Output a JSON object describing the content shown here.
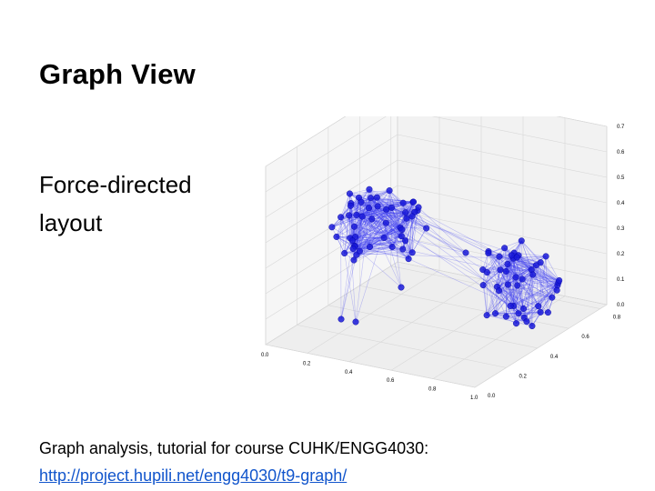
{
  "slide": {
    "title": "Graph View",
    "body_line_1": "Force-directed",
    "body_line_2": "layout",
    "footer_text": "Graph analysis, tutorial for course CUHK/ENGG4030:",
    "footer_link": "http://project.hupili.net/engg4030/t9-graph/"
  },
  "figure": {
    "x_ticks": [
      "0.0",
      "0.2",
      "0.4",
      "0.6",
      "0.8",
      "1.0"
    ],
    "y_ticks": [
      "0.0",
      "0.2",
      "0.4",
      "0.6",
      "0.8"
    ],
    "z_ticks": [
      "0.0",
      "0.1",
      "0.2",
      "0.3",
      "0.4",
      "0.5",
      "0.6",
      "0.7"
    ],
    "node_color": "#1a1ad8",
    "edge_color": "#3a3af0",
    "pane_color": "#eeeeee",
    "grid_color": "#d8d8d8"
  }
}
